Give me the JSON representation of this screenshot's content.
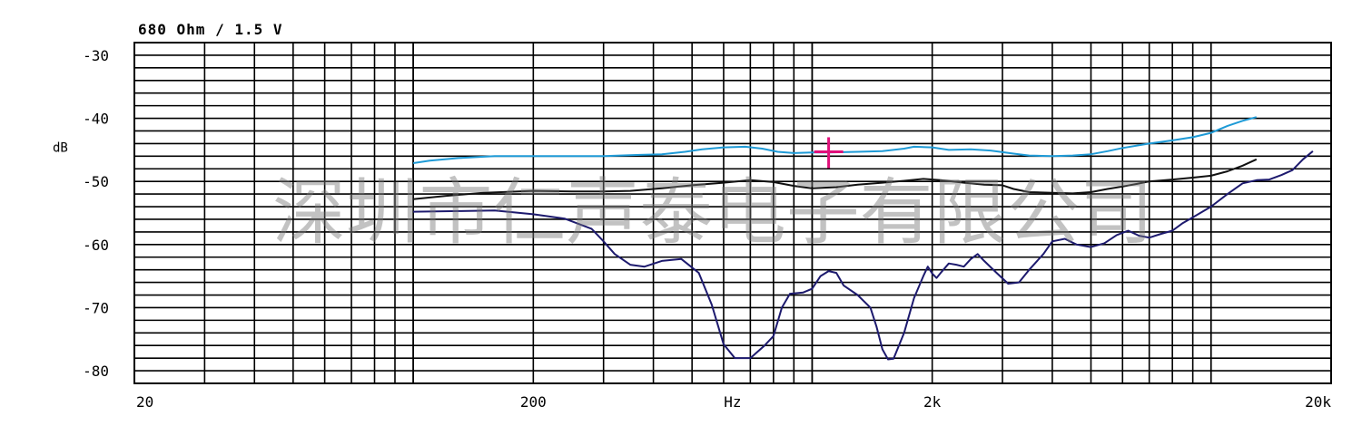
{
  "header": {
    "title": "680 Ohm / 1.5 V"
  },
  "watermark": "深圳市仁声泰电子有限公司",
  "colors": {
    "grid": "#000000",
    "cursor": "#e0107a"
  },
  "chart_data": {
    "type": "line",
    "title": "680 Ohm / 1.5 V",
    "xlabel": "Hz",
    "ylabel": "dB",
    "xscale": "log",
    "xlim": [
      20,
      20000
    ],
    "ylim": [
      -82,
      -28
    ],
    "x_ticks": [
      {
        "value": 20,
        "label": "20"
      },
      {
        "value": 200,
        "label": "200"
      },
      {
        "value": 2000,
        "label": "2k"
      },
      {
        "value": 20000,
        "label": "20k"
      }
    ],
    "x_unit_label_at": 632,
    "y_ticks": [
      {
        "value": -30,
        "label": "-30"
      },
      {
        "value": -40,
        "label": "-40"
      },
      {
        "value": -50,
        "label": "-50"
      },
      {
        "value": -60,
        "label": "-60"
      },
      {
        "value": -70,
        "label": "-70"
      },
      {
        "value": -80,
        "label": "-80"
      }
    ],
    "y_unit_at": -45,
    "grid": true,
    "cursor": {
      "x": 1100,
      "y": -45.3
    },
    "series": [
      {
        "color": "#1e9ad6",
        "points": [
          [
            100,
            -47.1
          ],
          [
            110,
            -46.7
          ],
          [
            130,
            -46.3
          ],
          [
            160,
            -46
          ],
          [
            200,
            -46
          ],
          [
            300,
            -46
          ],
          [
            370,
            -45.8
          ],
          [
            420,
            -45.7
          ],
          [
            480,
            -45.3
          ],
          [
            530,
            -44.9
          ],
          [
            600,
            -44.6
          ],
          [
            680,
            -44.5
          ],
          [
            750,
            -44.8
          ],
          [
            820,
            -45.3
          ],
          [
            900,
            -45.5
          ],
          [
            1000,
            -45.4
          ],
          [
            1100,
            -45.4
          ],
          [
            1300,
            -45.3
          ],
          [
            1500,
            -45.2
          ],
          [
            1700,
            -44.8
          ],
          [
            1800,
            -44.5
          ],
          [
            2000,
            -44.6
          ],
          [
            2200,
            -45
          ],
          [
            2500,
            -44.9
          ],
          [
            2800,
            -45.1
          ],
          [
            3200,
            -45.6
          ],
          [
            3500,
            -45.9
          ],
          [
            4000,
            -46
          ],
          [
            4500,
            -45.9
          ],
          [
            5000,
            -45.7
          ],
          [
            5500,
            -45.2
          ],
          [
            6000,
            -44.7
          ],
          [
            7000,
            -44
          ],
          [
            8000,
            -43.5
          ],
          [
            9000,
            -43
          ],
          [
            10000,
            -42.3
          ],
          [
            11000,
            -41.2
          ],
          [
            12000,
            -40.4
          ],
          [
            13000,
            -39.8
          ]
        ]
      },
      {
        "color": "#111111",
        "points": [
          [
            100,
            -52.8
          ],
          [
            120,
            -52.3
          ],
          [
            150,
            -51.8
          ],
          [
            200,
            -51.5
          ],
          [
            250,
            -51.6
          ],
          [
            300,
            -51.6
          ],
          [
            350,
            -51.5
          ],
          [
            420,
            -51.1
          ],
          [
            500,
            -50.6
          ],
          [
            600,
            -50.2
          ],
          [
            700,
            -49.8
          ],
          [
            800,
            -50.1
          ],
          [
            900,
            -50.7
          ],
          [
            1000,
            -51.1
          ],
          [
            1150,
            -50.9
          ],
          [
            1300,
            -50.5
          ],
          [
            1500,
            -50.2
          ],
          [
            1700,
            -49.9
          ],
          [
            1900,
            -49.6
          ],
          [
            2100,
            -49.8
          ],
          [
            2400,
            -50.2
          ],
          [
            2700,
            -50.5
          ],
          [
            3000,
            -50.6
          ],
          [
            3200,
            -51.2
          ],
          [
            3500,
            -51.7
          ],
          [
            4000,
            -51.8
          ],
          [
            4500,
            -51.9
          ],
          [
            5000,
            -51.7
          ],
          [
            5500,
            -51.2
          ],
          [
            6000,
            -50.8
          ],
          [
            6500,
            -50.4
          ],
          [
            7000,
            -50
          ],
          [
            8000,
            -49.7
          ],
          [
            9000,
            -49.4
          ],
          [
            10000,
            -49.1
          ],
          [
            11000,
            -48.4
          ],
          [
            12000,
            -47.5
          ],
          [
            13000,
            -46.5
          ]
        ]
      },
      {
        "color": "#1d1a6e",
        "points": [
          [
            100,
            -54.8
          ],
          [
            130,
            -54.7
          ],
          [
            160,
            -54.6
          ],
          [
            200,
            -55.2
          ],
          [
            240,
            -55.9
          ],
          [
            280,
            -57.5
          ],
          [
            300,
            -59.5
          ],
          [
            320,
            -61.5
          ],
          [
            350,
            -63.2
          ],
          [
            380,
            -63.5
          ],
          [
            420,
            -62.6
          ],
          [
            470,
            -62.3
          ],
          [
            520,
            -64.5
          ],
          [
            560,
            -69.5
          ],
          [
            600,
            -75.8
          ],
          [
            640,
            -78
          ],
          [
            700,
            -78
          ],
          [
            760,
            -76
          ],
          [
            800,
            -74.5
          ],
          [
            840,
            -70
          ],
          [
            880,
            -67.8
          ],
          [
            950,
            -67.6
          ],
          [
            1000,
            -67
          ],
          [
            1050,
            -65
          ],
          [
            1100,
            -64.2
          ],
          [
            1150,
            -64.5
          ],
          [
            1200,
            -66.5
          ],
          [
            1300,
            -68
          ],
          [
            1400,
            -70
          ],
          [
            1450,
            -73
          ],
          [
            1500,
            -76.6
          ],
          [
            1550,
            -78.2
          ],
          [
            1600,
            -78.1
          ],
          [
            1700,
            -74
          ],
          [
            1800,
            -68.5
          ],
          [
            1900,
            -65
          ],
          [
            1950,
            -63.5
          ],
          [
            2000,
            -64.6
          ],
          [
            2050,
            -65.3
          ],
          [
            2100,
            -64.5
          ],
          [
            2200,
            -63
          ],
          [
            2300,
            -63.2
          ],
          [
            2400,
            -63.5
          ],
          [
            2500,
            -62.3
          ],
          [
            2600,
            -61.5
          ],
          [
            2700,
            -62.6
          ],
          [
            2900,
            -64.5
          ],
          [
            3100,
            -66.2
          ],
          [
            3300,
            -66
          ],
          [
            3500,
            -64
          ],
          [
            3800,
            -61.5
          ],
          [
            4000,
            -59.5
          ],
          [
            4300,
            -59.1
          ],
          [
            4600,
            -60
          ],
          [
            5000,
            -60.4
          ],
          [
            5400,
            -59.8
          ],
          [
            5800,
            -58.5
          ],
          [
            6200,
            -57.8
          ],
          [
            6600,
            -58.6
          ],
          [
            7000,
            -58.9
          ],
          [
            7500,
            -58.3
          ],
          [
            8000,
            -57.8
          ],
          [
            8500,
            -56.6
          ],
          [
            9000,
            -55.7
          ],
          [
            10000,
            -54
          ],
          [
            11000,
            -52
          ],
          [
            12000,
            -50.3
          ],
          [
            13000,
            -49.8
          ],
          [
            14000,
            -49.7
          ],
          [
            15000,
            -49
          ],
          [
            16000,
            -48.2
          ],
          [
            17000,
            -46.5
          ],
          [
            18000,
            -45.2
          ]
        ]
      }
    ]
  }
}
